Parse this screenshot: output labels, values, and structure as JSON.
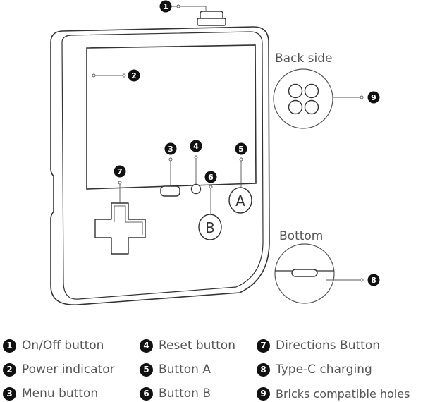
{
  "section_labels": {
    "back_side": "Back side",
    "bottom": "Bottom"
  },
  "device": {
    "button_a_letter": "A",
    "button_b_letter": "B"
  },
  "markers": [
    "1",
    "2",
    "3",
    "4",
    "5",
    "6",
    "7",
    "8",
    "9"
  ],
  "legend": [
    {
      "num": "1",
      "label": "On/Off button"
    },
    {
      "num": "2",
      "label": "Power indicator"
    },
    {
      "num": "3",
      "label": "Menu button"
    },
    {
      "num": "4",
      "label": "Reset button"
    },
    {
      "num": "5",
      "label": "Button A"
    },
    {
      "num": "6",
      "label": "Button B"
    },
    {
      "num": "7",
      "label": "Directions Button"
    },
    {
      "num": "8",
      "label": "Type-C charging"
    },
    {
      "num": "9",
      "label": "Bricks compatible holes"
    }
  ],
  "colors": {
    "outline": "#333333",
    "marker": "#111111",
    "label": "#555555"
  }
}
